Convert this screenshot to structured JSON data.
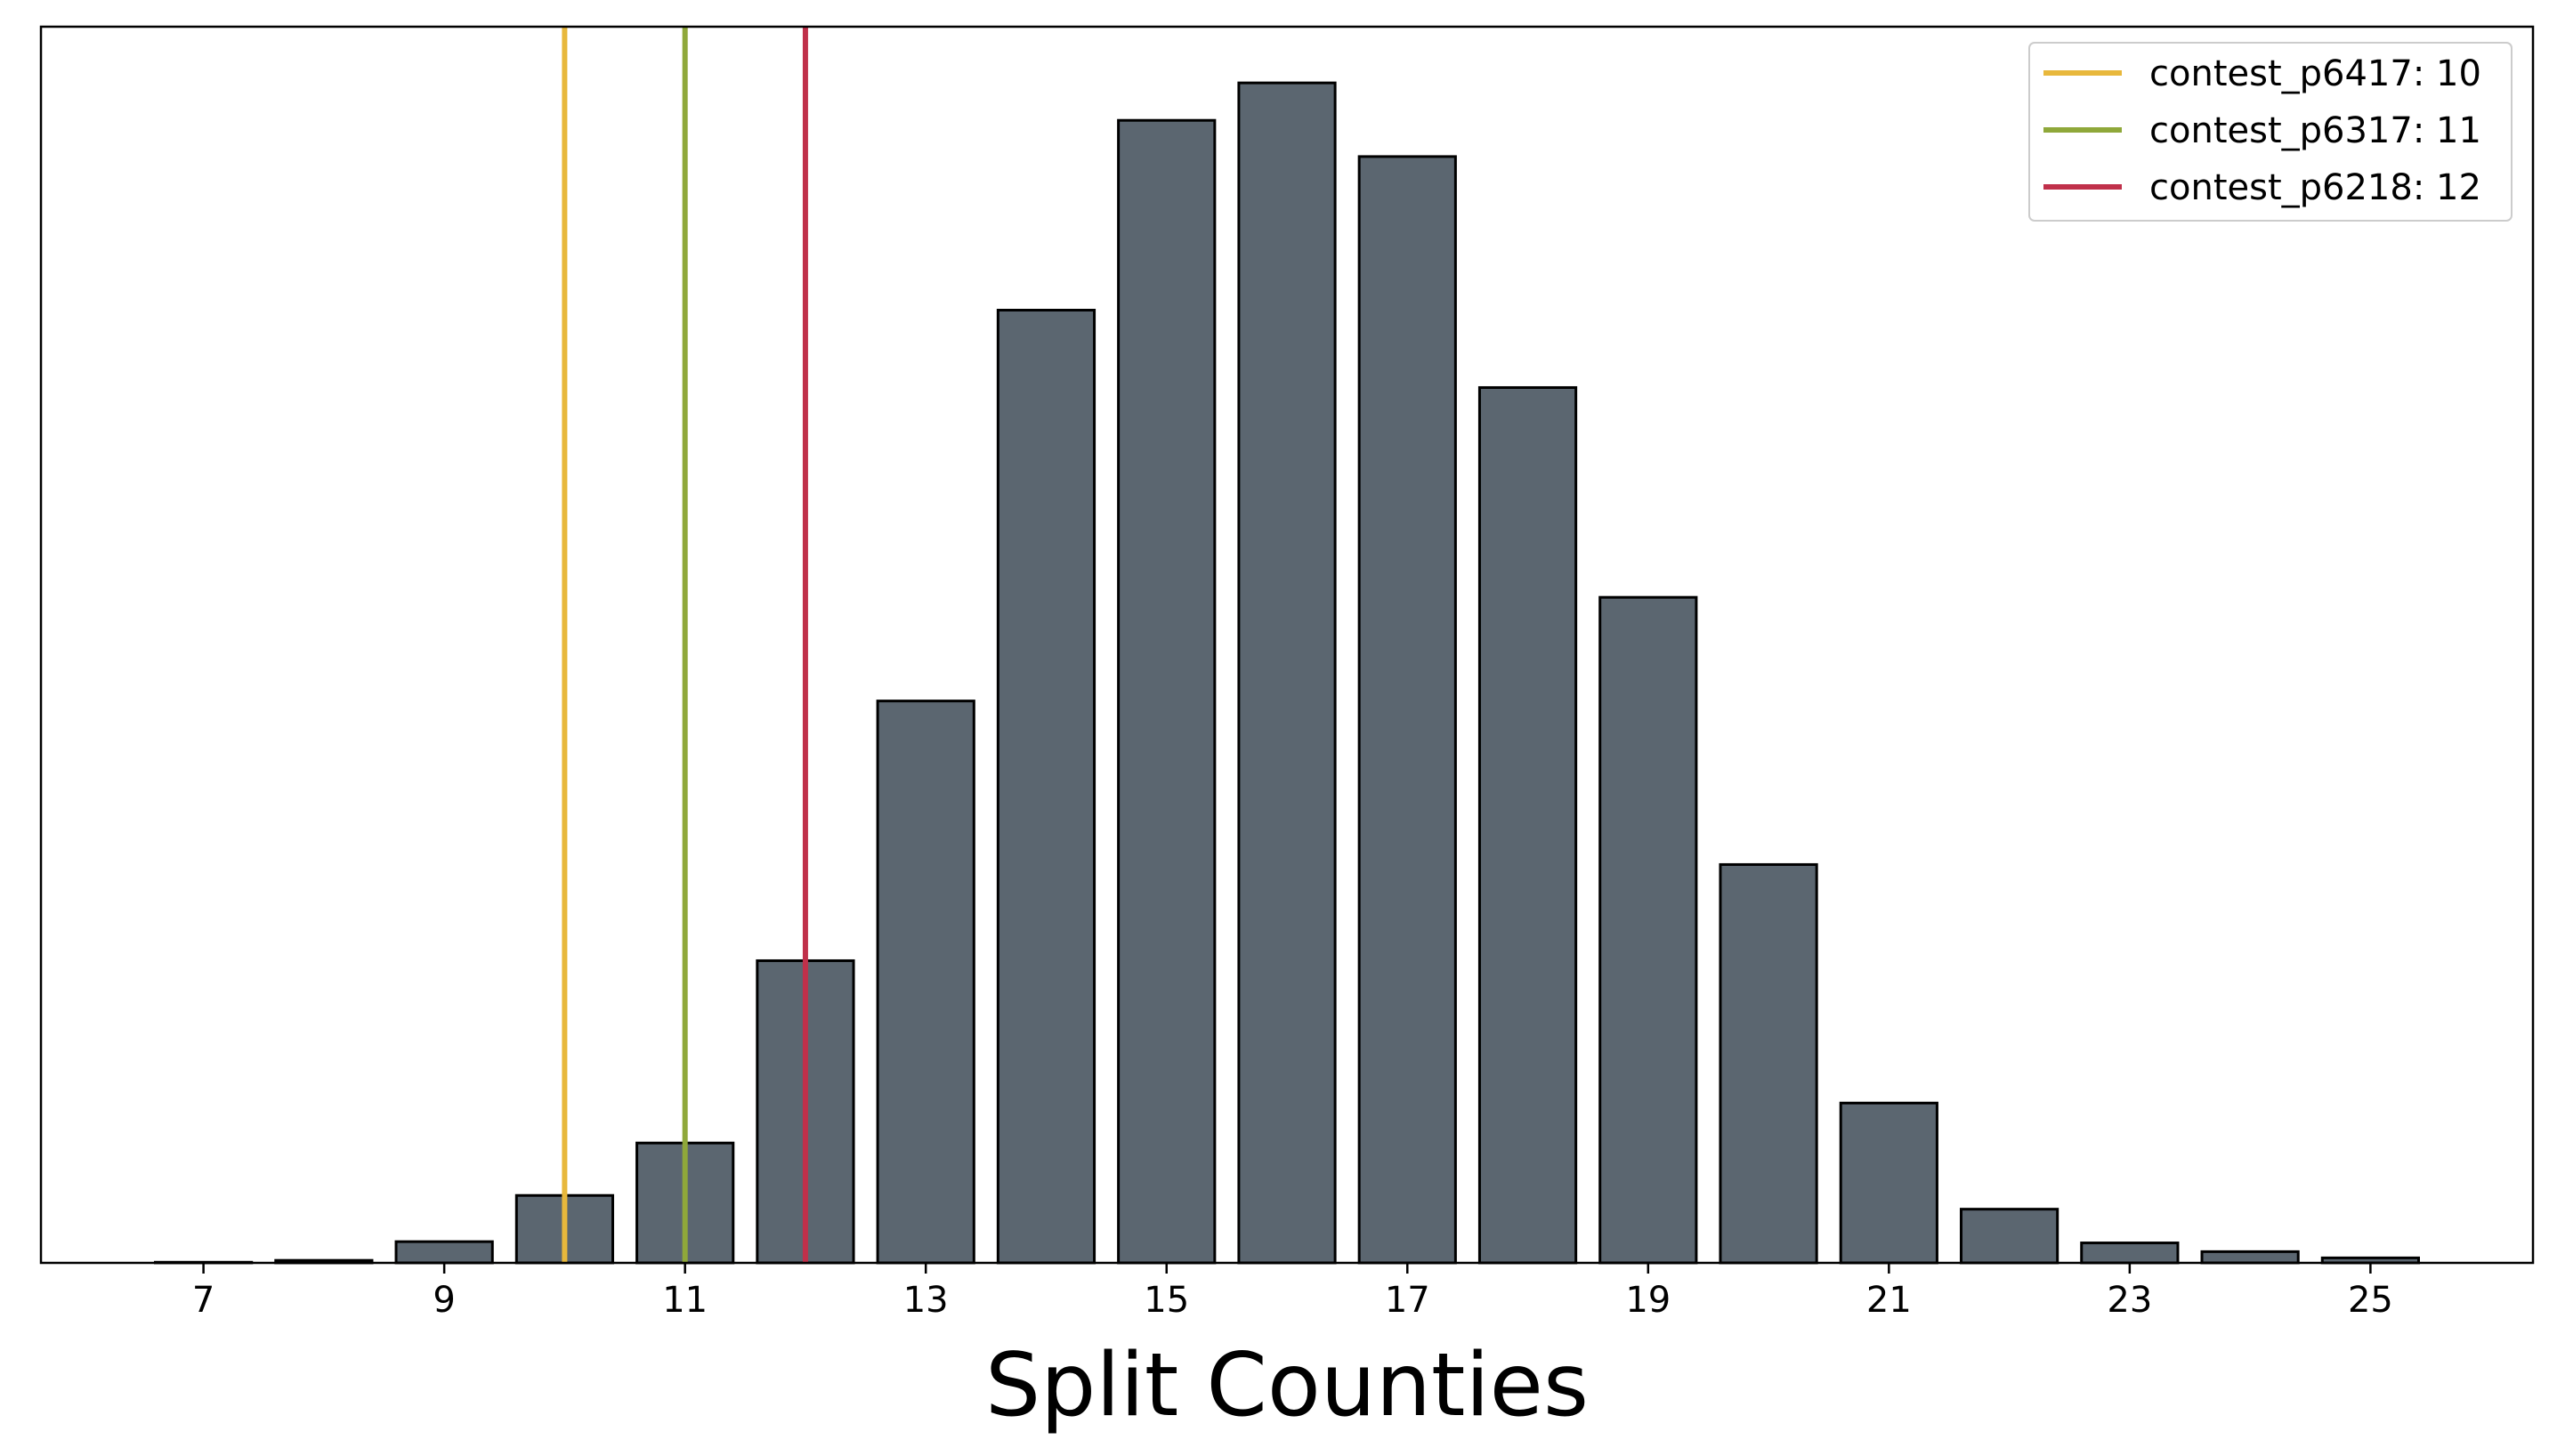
{
  "chart_data": {
    "type": "bar",
    "title": "",
    "xlabel": "Split Counties",
    "ylabel": "",
    "x": [
      7,
      8,
      9,
      10,
      11,
      12,
      13,
      14,
      15,
      16,
      17,
      18,
      19,
      20,
      21,
      22,
      23,
      24,
      25
    ],
    "values": [
      0.05,
      0.2,
      1.7,
      5.4,
      9.6,
      24.2,
      45.0,
      76.3,
      91.5,
      94.5,
      88.6,
      70.1,
      53.3,
      31.9,
      12.8,
      4.3,
      1.6,
      0.9,
      0.4
    ],
    "xlim": [
      5.65,
      26.35
    ],
    "ylim": [
      0,
      99
    ],
    "xticks": [
      7,
      9,
      11,
      13,
      15,
      17,
      19,
      21,
      23,
      25
    ],
    "show_yticks": false,
    "grid": false,
    "bar_color": "#5b6670",
    "bar_edge_color": "#000000",
    "reference_lines": [
      {
        "label": "contest_p6417: 10",
        "x": 10,
        "color": "#e8b83c"
      },
      {
        "label": "contest_p6317: 11",
        "x": 11,
        "color": "#8fa83a"
      },
      {
        "label": "contest_p6218: 12",
        "x": 12,
        "color": "#c0304a"
      }
    ],
    "legend_position": "top-right"
  }
}
